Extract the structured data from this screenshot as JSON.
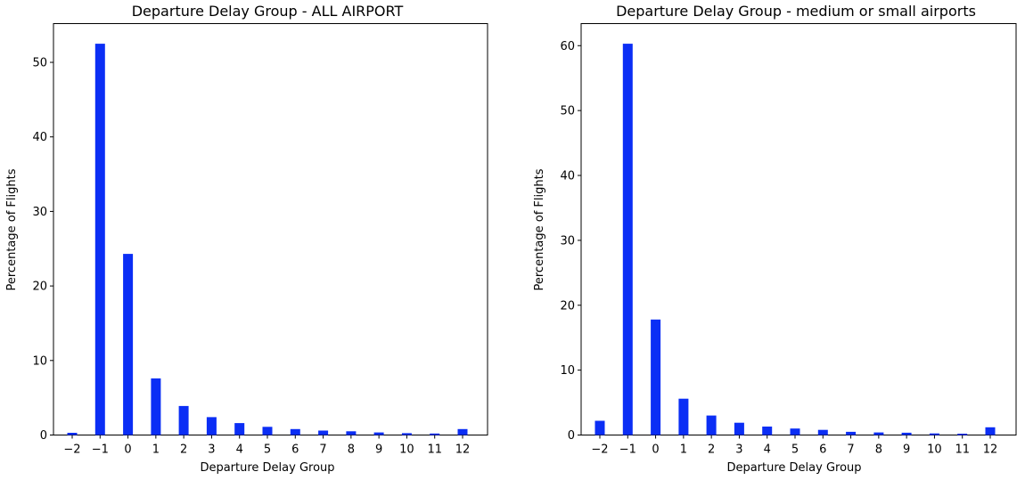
{
  "chart_data": [
    {
      "type": "bar",
      "title": "Departure Delay Group - ALL AIRPORT",
      "xlabel": "Departure Delay Group",
      "ylabel": "Percentage of Flights",
      "categories": [
        "−2",
        "−1",
        "0",
        "1",
        "2",
        "3",
        "4",
        "5",
        "6",
        "7",
        "8",
        "9",
        "10",
        "11",
        "12"
      ],
      "x": [
        -2,
        -1,
        0,
        1,
        2,
        3,
        4,
        5,
        6,
        7,
        8,
        9,
        10,
        11,
        12
      ],
      "values": [
        0.3,
        52.5,
        24.3,
        7.6,
        3.9,
        2.4,
        1.6,
        1.1,
        0.8,
        0.6,
        0.5,
        0.35,
        0.25,
        0.2,
        0.8
      ],
      "ylim": [
        0,
        55.2
      ],
      "yticks": [
        0,
        10,
        20,
        30,
        40,
        50
      ],
      "bar_color": "#0b2ef5",
      "grid": false,
      "legend": false
    },
    {
      "type": "bar",
      "title": "Departure Delay Group - medium or small airports",
      "xlabel": "Departure Delay Group",
      "ylabel": "Percentage of Flights",
      "categories": [
        "−2",
        "−1",
        "0",
        "1",
        "2",
        "3",
        "4",
        "5",
        "6",
        "7",
        "8",
        "9",
        "10",
        "11",
        "12"
      ],
      "x": [
        -2,
        -1,
        0,
        1,
        2,
        3,
        4,
        5,
        6,
        7,
        8,
        9,
        10,
        11,
        12
      ],
      "values": [
        2.2,
        60.3,
        17.8,
        5.6,
        3.0,
        1.9,
        1.3,
        1.0,
        0.8,
        0.5,
        0.4,
        0.35,
        0.25,
        0.2,
        1.2
      ],
      "ylim": [
        0,
        63.4
      ],
      "yticks": [
        0,
        10,
        20,
        30,
        40,
        50,
        60
      ],
      "bar_color": "#0b2ef5",
      "grid": false,
      "legend": false
    }
  ]
}
